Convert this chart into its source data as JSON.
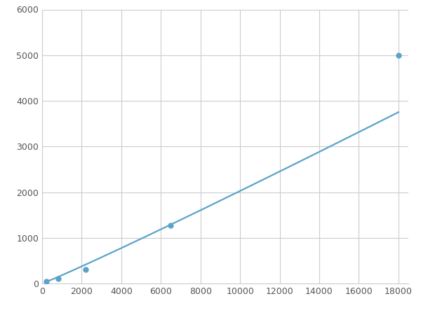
{
  "x_points": [
    200,
    800,
    2200,
    6500,
    18000
  ],
  "y_points": [
    50,
    100,
    305,
    1270,
    5000
  ],
  "line_color": "#5BA3C9",
  "marker_color": "#5BA3C9",
  "marker_size": 6,
  "line_width": 1.6,
  "xlim": [
    0,
    18500
  ],
  "ylim": [
    0,
    6000
  ],
  "xticks": [
    0,
    2000,
    4000,
    6000,
    8000,
    10000,
    12000,
    14000,
    16000,
    18000
  ],
  "yticks": [
    0,
    1000,
    2000,
    3000,
    4000,
    5000,
    6000
  ],
  "grid_color": "#cccccc",
  "background_color": "#ffffff",
  "figsize": [
    6.0,
    4.5
  ],
  "dpi": 100,
  "tick_fontsize": 9,
  "tick_color": "#555555"
}
